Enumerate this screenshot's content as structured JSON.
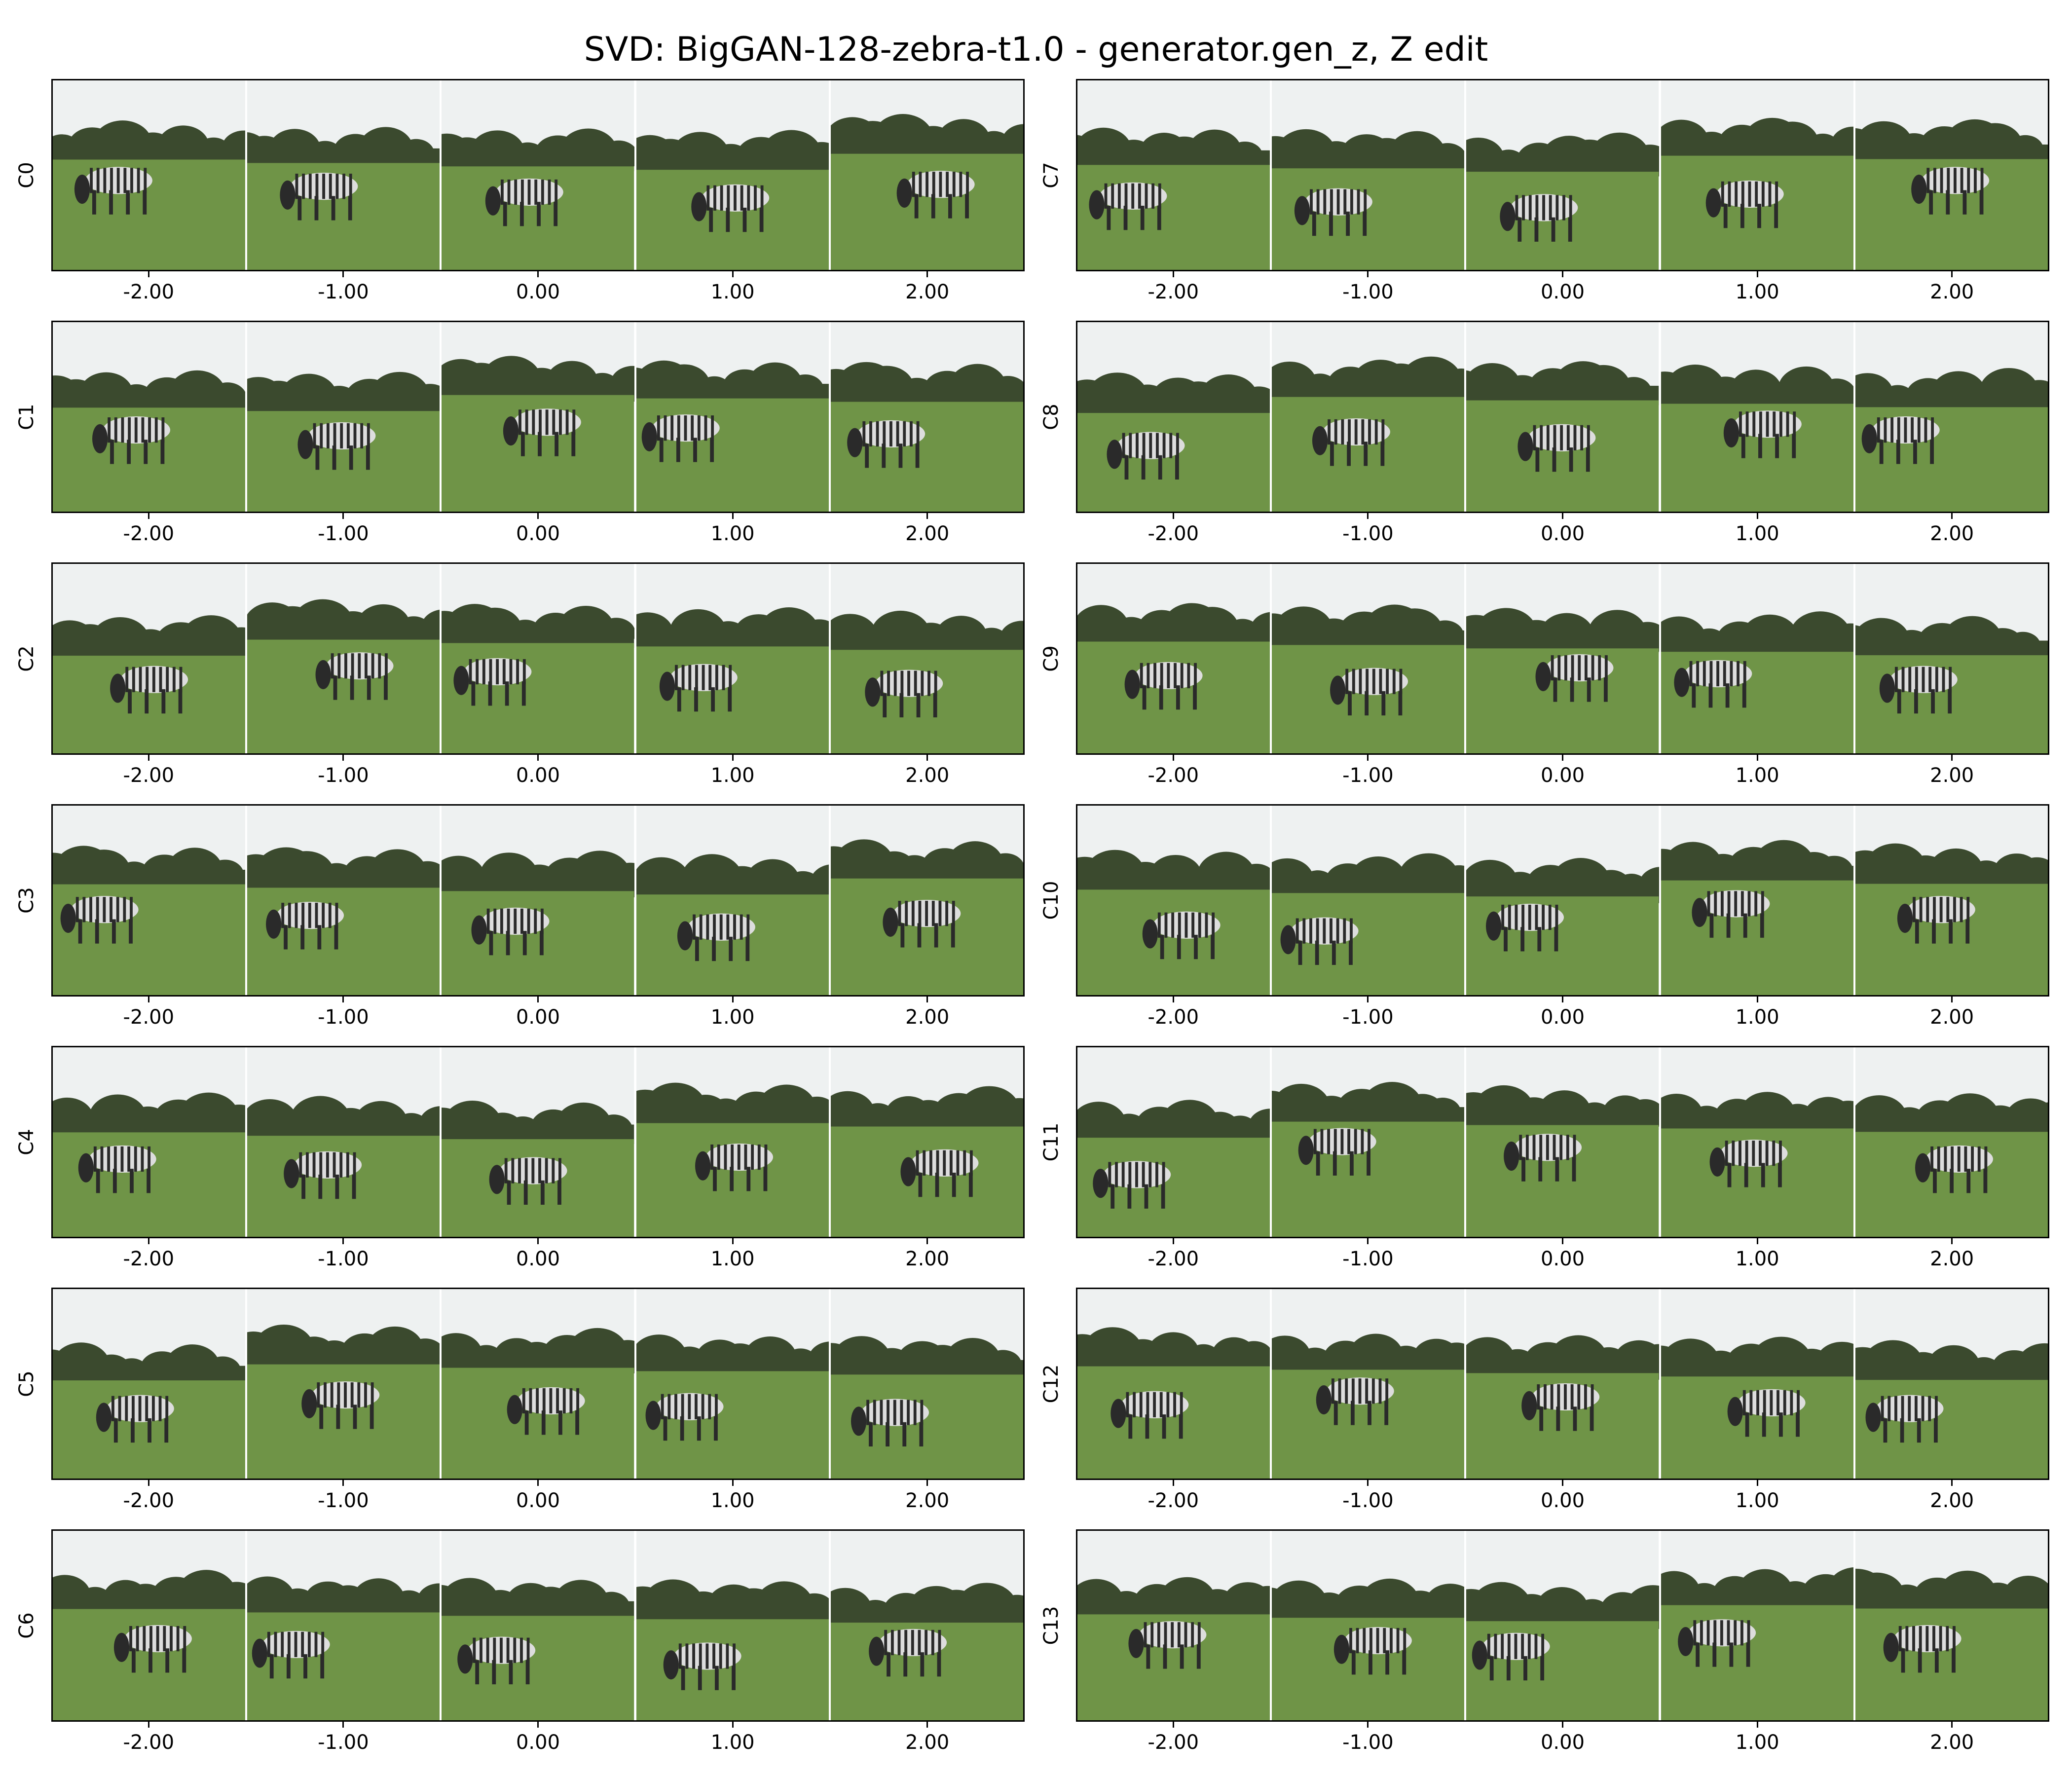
{
  "title": "SVD: BigGAN-128-zebra-t1.0 - generator.gen_z, Z edit",
  "x_tick_labels": [
    "-2.00",
    "-1.00",
    "0.00",
    "1.00",
    "2.00"
  ],
  "image_content": "zebra",
  "components": [
    {
      "label": "C0"
    },
    {
      "label": "C1"
    },
    {
      "label": "C2"
    },
    {
      "label": "C3"
    },
    {
      "label": "C4"
    },
    {
      "label": "C5"
    },
    {
      "label": "C6"
    },
    {
      "label": "C7"
    },
    {
      "label": "C8"
    },
    {
      "label": "C9"
    },
    {
      "label": "C10"
    },
    {
      "label": "C11"
    },
    {
      "label": "C12"
    },
    {
      "label": "C13"
    }
  ],
  "colors": {
    "sky": "#eef1f1",
    "trees": "#3b4a2e",
    "grass": "#6f9447",
    "zebra": "#2a2a2a"
  }
}
